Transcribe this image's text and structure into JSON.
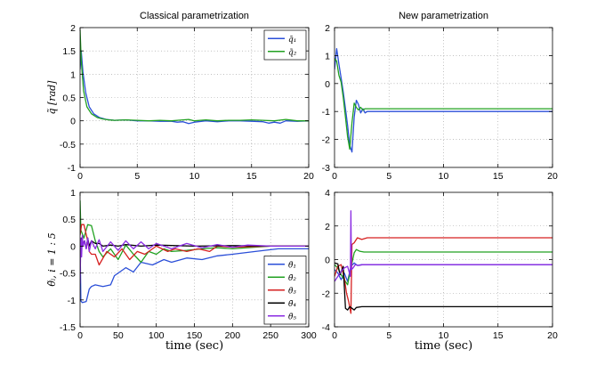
{
  "chart_data": [
    {
      "id": "tl",
      "type": "line",
      "title": "Classical parametrization",
      "xlabel": "",
      "ylabel": "q̃ [rad]",
      "xlim": [
        0,
        20
      ],
      "ylim": [
        -1,
        2
      ],
      "xticks": [
        0,
        5,
        10,
        15,
        20
      ],
      "yticks": [
        -1,
        -0.5,
        0,
        0.5,
        1,
        1.5,
        2
      ],
      "grid": true,
      "legend_position": "top-right",
      "legend": [
        "q̃₁",
        "q̃₂"
      ],
      "series": [
        {
          "name": "q̃₁",
          "color": "#2b4fd8",
          "x": [
            0,
            0.1,
            0.25,
            0.5,
            0.8,
            1.2,
            1.7,
            2.3,
            3,
            4,
            5,
            6,
            7,
            8,
            8.5,
            9,
            9.5,
            10,
            11,
            12,
            13,
            14,
            15,
            16,
            16.5,
            17,
            17.5,
            18,
            19,
            20
          ],
          "y": [
            1.1,
            1.5,
            1.05,
            0.6,
            0.3,
            0.15,
            0.07,
            0.03,
            0.01,
            0.02,
            0,
            0,
            -0.01,
            -0.01,
            -0.03,
            -0.02,
            -0.06,
            -0.03,
            0,
            -0.02,
            0,
            0,
            -0.01,
            -0.02,
            -0.05,
            -0.03,
            -0.05,
            0,
            -0.01,
            0
          ]
        },
        {
          "name": "q̃₂",
          "color": "#21a121",
          "x": [
            0,
            0.1,
            0.3,
            0.6,
            1,
            1.5,
            2,
            2.5,
            3,
            4,
            5,
            6,
            7,
            8,
            8.5,
            9,
            9.5,
            10,
            11,
            12,
            13,
            14,
            15,
            16,
            17,
            18,
            19,
            20
          ],
          "y": [
            1.95,
            1.3,
            0.65,
            0.3,
            0.15,
            0.07,
            0.04,
            0.02,
            0.01,
            0.02,
            0.01,
            0,
            0.01,
            0,
            0.01,
            0.02,
            0.03,
            0,
            0.02,
            0,
            0.01,
            0.01,
            0.02,
            0.01,
            0,
            0.03,
            0,
            0
          ]
        }
      ]
    },
    {
      "id": "tr",
      "type": "line",
      "title": "New parametrization",
      "xlabel": "",
      "ylabel": "",
      "xlim": [
        0,
        20
      ],
      "ylim": [
        -3,
        2
      ],
      "xticks": [
        0,
        5,
        10,
        15,
        20
      ],
      "yticks": [
        -3,
        -2,
        -1,
        0,
        1,
        2
      ],
      "grid": true,
      "series": [
        {
          "name": "q̃₁",
          "color": "#2b4fd8",
          "x": [
            0,
            0.2,
            0.4,
            0.6,
            0.8,
            1,
            1.2,
            1.4,
            1.6,
            1.8,
            2,
            2.2,
            2.4,
            2.6,
            2.8,
            3,
            3.5,
            20
          ],
          "y": [
            0.5,
            1.25,
            0.7,
            0.2,
            -0.3,
            -0.9,
            -1.5,
            -2.2,
            -2.45,
            -1.2,
            -0.6,
            -0.75,
            -1.05,
            -0.9,
            -1.05,
            -1,
            -1,
            -1
          ]
        },
        {
          "name": "q̃₂",
          "color": "#21a121",
          "x": [
            0,
            0.2,
            0.4,
            0.6,
            0.8,
            1,
            1.2,
            1.4,
            1.6,
            1.8,
            2,
            2.2,
            2.4,
            2.6,
            2.8,
            3,
            20
          ],
          "y": [
            0.9,
            0.8,
            0.3,
            0.05,
            -0.5,
            -1.2,
            -1.9,
            -2.35,
            -1.4,
            -0.7,
            -0.85,
            -0.95,
            -0.85,
            -0.95,
            -0.9,
            -0.9,
            -0.9
          ]
        }
      ]
    },
    {
      "id": "bl",
      "type": "line",
      "title": "",
      "xlabel": "time (sec)",
      "ylabel": "θ̃ᵢ, i = 1 : 5",
      "xlim": [
        0,
        300
      ],
      "ylim": [
        -1.5,
        1
      ],
      "xticks": [
        0,
        50,
        100,
        150,
        200,
        250,
        300
      ],
      "yticks": [
        -1.5,
        -1,
        -0.5,
        0,
        0.5,
        1
      ],
      "grid": true,
      "legend_position": "bottom-right",
      "legend": [
        "θ̃₁",
        "θ̃₂",
        "θ̃₃",
        "θ̃₄",
        "θ̃₅"
      ],
      "series": [
        {
          "name": "θ̃₁",
          "color": "#2b4fd8",
          "x": [
            0,
            1,
            3,
            8,
            12,
            15,
            20,
            30,
            40,
            45,
            60,
            70,
            80,
            95,
            110,
            120,
            140,
            160,
            180,
            200,
            230,
            260,
            300
          ],
          "y": [
            0.1,
            -1.02,
            -1.05,
            -1.03,
            -0.8,
            -0.75,
            -0.72,
            -0.75,
            -0.72,
            -0.55,
            -0.4,
            -0.48,
            -0.3,
            -0.35,
            -0.25,
            -0.3,
            -0.22,
            -0.25,
            -0.18,
            -0.15,
            -0.1,
            -0.05,
            -0.05
          ]
        },
        {
          "name": "θ̃₂",
          "color": "#21a121",
          "x": [
            0,
            1,
            5,
            10,
            15,
            20,
            25,
            30,
            40,
            50,
            60,
            70,
            80,
            90,
            100,
            110,
            120,
            140,
            160,
            180,
            200,
            250,
            300
          ],
          "y": [
            0.85,
            0.3,
            0.15,
            0.4,
            0.38,
            0.1,
            -0.1,
            -0.2,
            -0.05,
            -0.25,
            0.02,
            -0.15,
            -0.3,
            -0.1,
            -0.15,
            -0.05,
            -0.1,
            -0.08,
            -0.05,
            -0.03,
            -0.05,
            0,
            0
          ]
        },
        {
          "name": "θ̃₃",
          "color": "#d62020",
          "x": [
            0,
            2,
            5,
            10,
            12,
            15,
            20,
            25,
            35,
            45,
            55,
            65,
            75,
            85,
            100,
            115,
            125,
            140,
            155,
            170,
            180,
            200,
            250,
            300
          ],
          "y": [
            0.2,
            0.4,
            0.4,
            0.1,
            -0.1,
            -0.15,
            -0.15,
            -0.35,
            -0.1,
            -0.2,
            -0.05,
            -0.25,
            -0.1,
            -0.15,
            0,
            -0.1,
            -0.05,
            -0.1,
            -0.05,
            -0.1,
            0,
            -0.02,
            0,
            0
          ]
        },
        {
          "name": "θ̃₄",
          "color": "#000000",
          "x": [
            0,
            2,
            4,
            6,
            8,
            10,
            12,
            15,
            20,
            25,
            30,
            40,
            50,
            60,
            80,
            100,
            150,
            200,
            250,
            300
          ],
          "y": [
            0.1,
            0.15,
            0.05,
            0.1,
            -0.05,
            0.15,
            0,
            0.1,
            0.05,
            0.05,
            0,
            0.02,
            0,
            0.03,
            0,
            0.02,
            0,
            0.01,
            0,
            0
          ]
        },
        {
          "name": "θ̃₅",
          "color": "#8a2be2",
          "x": [
            0,
            1,
            2,
            3,
            4,
            6,
            8,
            10,
            12,
            15,
            20,
            25,
            30,
            40,
            50,
            60,
            70,
            80,
            90,
            100,
            120,
            140,
            160,
            180,
            200,
            220,
            250,
            300
          ],
          "y": [
            -0.7,
            0.15,
            -0.2,
            0.2,
            0,
            0.1,
            -0.05,
            0.15,
            -0.1,
            0.1,
            -0.05,
            0.12,
            -0.1,
            0.08,
            -0.08,
            0.1,
            -0.05,
            0.08,
            -0.05,
            0.05,
            -0.05,
            0.05,
            -0.03,
            0.03,
            -0.02,
            0.02,
            0,
            0
          ]
        }
      ]
    },
    {
      "id": "br",
      "type": "line",
      "title": "",
      "xlabel": "time (sec)",
      "ylabel": "",
      "xlim": [
        0,
        20
      ],
      "ylim": [
        -4,
        4
      ],
      "xticks": [
        0,
        5,
        10,
        15,
        20
      ],
      "yticks": [
        -4,
        -2,
        0,
        2,
        4
      ],
      "grid": true,
      "series": [
        {
          "name": "θ̃₁",
          "color": "#2b4fd8",
          "x": [
            0,
            0.3,
            0.6,
            0.9,
            1.2,
            1.5,
            1.8,
            2.1,
            2.5,
            3,
            20
          ],
          "y": [
            -0.6,
            -0.8,
            -1.2,
            -0.8,
            -1.3,
            -0.4,
            -0.2,
            -0.35,
            -0.3,
            -0.3,
            -0.3
          ]
        },
        {
          "name": "θ̃₂",
          "color": "#21a121",
          "x": [
            0,
            0.3,
            0.6,
            0.9,
            1.2,
            1.5,
            1.8,
            2,
            2.3,
            2.7,
            3,
            20
          ],
          "y": [
            -0.3,
            -0.5,
            -0.9,
            -1.2,
            -1.5,
            -0.5,
            0.4,
            0.6,
            0.5,
            0.45,
            0.45,
            0.45
          ]
        },
        {
          "name": "θ̃₃",
          "color": "#d62020",
          "x": [
            0,
            0.3,
            0.6,
            0.9,
            1.1,
            1.3,
            1.5,
            1.6,
            1.8,
            2.1,
            2.5,
            3,
            3.5,
            20
          ],
          "y": [
            -1,
            -0.4,
            -0.3,
            -1.1,
            -2,
            -2.5,
            -3.2,
            0.9,
            1,
            1.3,
            1.2,
            1.3,
            1.3,
            1.3
          ]
        },
        {
          "name": "θ̃₄",
          "color": "#000000",
          "x": [
            0,
            0.3,
            0.5,
            0.8,
            1,
            1.2,
            1.4,
            1.6,
            1.8,
            2,
            2.5,
            3,
            20
          ],
          "y": [
            -0.2,
            -0.25,
            -0.9,
            -0.4,
            -2.9,
            -3,
            -2.8,
            -2.9,
            -3,
            -2.85,
            -2.8,
            -2.8,
            -2.8
          ]
        },
        {
          "name": "θ̃₅",
          "color": "#8a2be2",
          "x": [
            0,
            0.3,
            0.6,
            0.9,
            1.2,
            1.45,
            1.5,
            1.55,
            1.7,
            1.9,
            2.2,
            2.6,
            3,
            20
          ],
          "y": [
            -1.3,
            -1,
            -0.7,
            -0.5,
            -0.4,
            -1,
            2.9,
            -0.6,
            -0.5,
            -0.3,
            -0.35,
            -0.3,
            -0.3,
            -0.3
          ]
        }
      ]
    }
  ]
}
